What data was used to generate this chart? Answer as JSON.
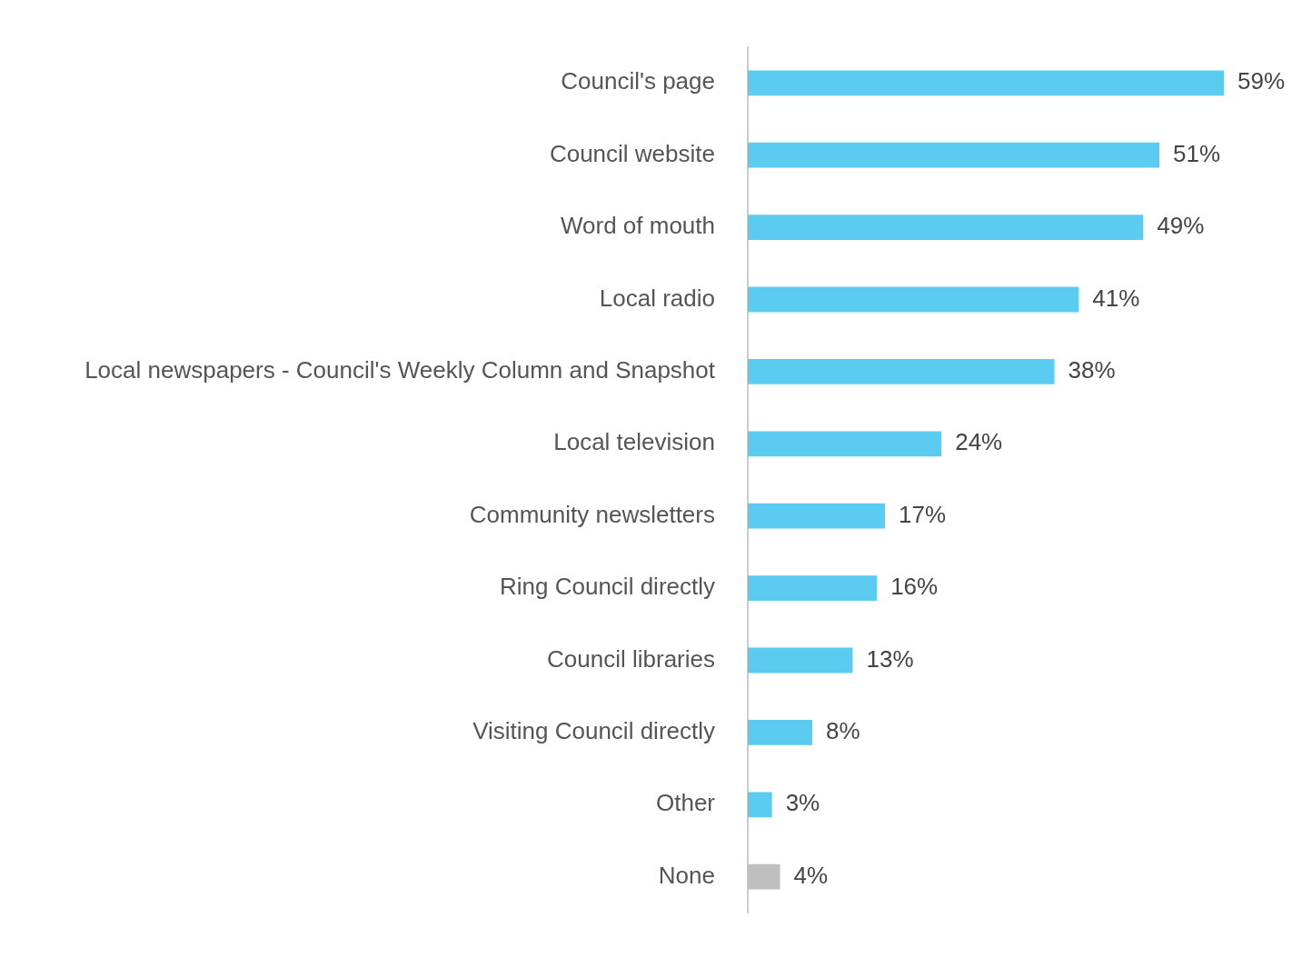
{
  "chart_data": {
    "type": "bar",
    "orientation": "horizontal",
    "categories": [
      "Council's page",
      "Council website",
      "Word of mouth",
      "Local radio",
      "Local newspapers - Council's Weekly Column and Snapshot",
      "Local television",
      "Community newsletters",
      "Ring Council directly",
      "Council libraries",
      "Visiting Council directly",
      "Other",
      "None"
    ],
    "values": [
      59,
      51,
      49,
      41,
      38,
      24,
      17,
      16,
      13,
      8,
      3,
      4
    ],
    "value_labels": [
      "59%",
      "51%",
      "49%",
      "41%",
      "38%",
      "24%",
      "17%",
      "16%",
      "13%",
      "8%",
      "3%",
      "4%"
    ],
    "colors": [
      "#5bcbef",
      "#5bcbef",
      "#5bcbef",
      "#5bcbef",
      "#5bcbef",
      "#5bcbef",
      "#5bcbef",
      "#5bcbef",
      "#5bcbef",
      "#5bcbef",
      "#5bcbef",
      "#bfbfbf"
    ],
    "legend": false
  }
}
